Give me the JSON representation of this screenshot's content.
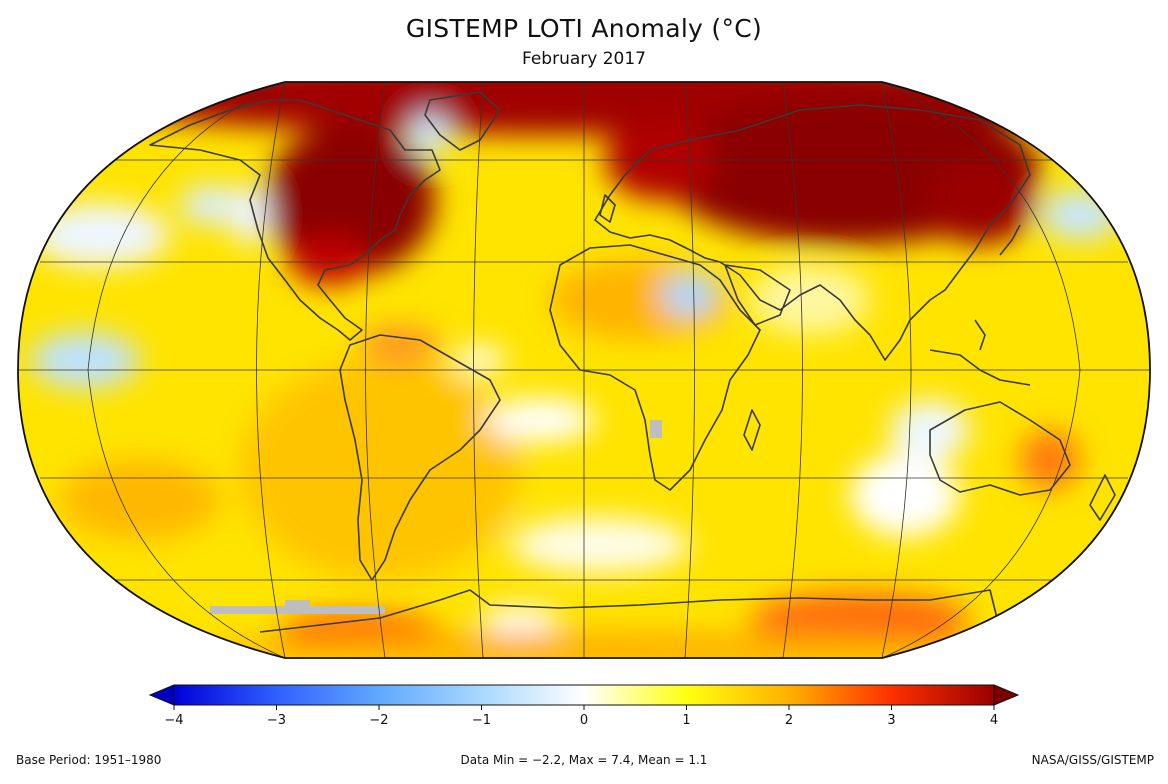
{
  "title": "GISTEMP LOTI Anomaly (°C)",
  "subtitle": "February 2017",
  "footer": {
    "base_period": "Base Period: 1951–1980",
    "data_stats": "Data Min = −2.2, Max = 7.4, Mean = 1.1",
    "source": "NASA/GISS/GISTEMP"
  },
  "colorbar": {
    "ticks": [
      "−4",
      "−3",
      "−2",
      "−1",
      "0",
      "1",
      "2",
      "3",
      "4"
    ],
    "range": [
      -4,
      4
    ],
    "colors": [
      "#0000d8",
      "#3060ff",
      "#60a8ff",
      "#a8d8ff",
      "#ffffff",
      "#ffff10",
      "#ffb000",
      "#ff3000",
      "#9a0000",
      "#7a0000"
    ]
  },
  "map": {
    "projection": "Robinson",
    "meridian_spacing_deg": 30,
    "parallel_spacing_deg": 30,
    "missing_data_color": "#bebebe",
    "land_outline_color": "#3a3a3a"
  }
}
